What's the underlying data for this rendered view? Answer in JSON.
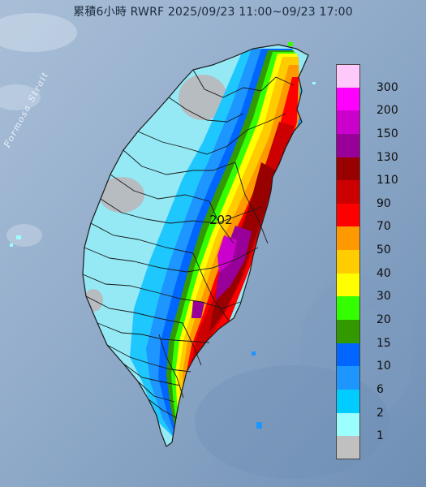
{
  "title": "累積6小時 RWRF 2025/09/23 11:00~09/23 17:00",
  "sea_label": "Formosa Strait",
  "max_value": "202",
  "legend": {
    "levels": [
      {
        "label": "300",
        "color": "#ffc8fa"
      },
      {
        "label": "200",
        "color": "#ff00ff"
      },
      {
        "label": "150",
        "color": "#cc00cc"
      },
      {
        "label": "130",
        "color": "#990099"
      },
      {
        "label": "110",
        "color": "#990000"
      },
      {
        "label": "90",
        "color": "#cc0000"
      },
      {
        "label": "70",
        "color": "#ff0000"
      },
      {
        "label": "50",
        "color": "#ff9900"
      },
      {
        "label": "40",
        "color": "#ffcc00"
      },
      {
        "label": "30",
        "color": "#ffff00"
      },
      {
        "label": "20",
        "color": "#33ff00"
      },
      {
        "label": "15",
        "color": "#339900"
      },
      {
        "label": "10",
        "color": "#0066ff"
      },
      {
        "label": "6",
        "color": "#1e96ff"
      },
      {
        "label": "2",
        "color": "#00ccff"
      },
      {
        "label": "1",
        "color": "#9bffff"
      },
      {
        "label": "",
        "color": "#c0c0c0"
      }
    ]
  }
}
